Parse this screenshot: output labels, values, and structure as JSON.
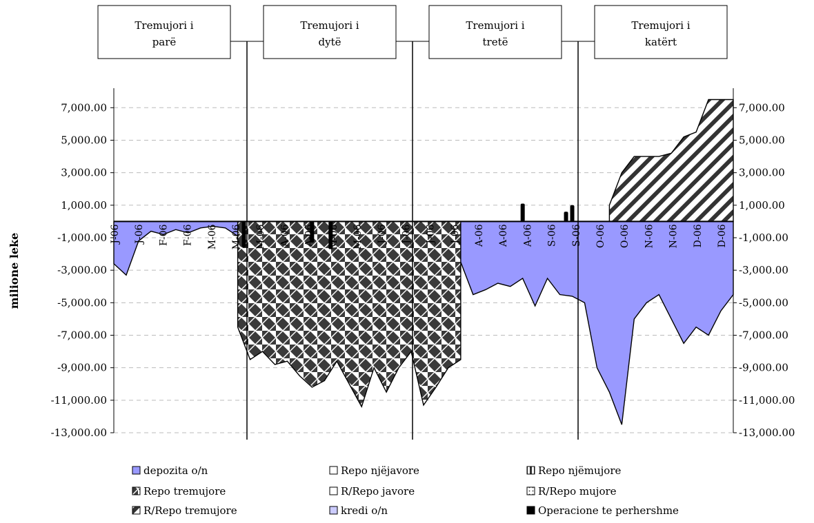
{
  "chart_data": {
    "type": "area",
    "ylabel": "milione leke",
    "ylim": [
      -13000,
      8200
    ],
    "yticks": [
      7000,
      5000,
      3000,
      1000,
      -1000,
      -3000,
      -5000,
      -7000,
      -9000,
      -11000,
      -13000
    ],
    "ytick_labels": [
      "7,000.00",
      "5,000.00",
      "3,000.00",
      "1,000.00",
      "-1,000.00",
      "-3,000.00",
      "-5,000.00",
      "-7,000.00",
      "-9,000.00",
      "-11,000.00",
      "-13,000.00"
    ],
    "grid": true,
    "legend_position": "bottom",
    "quarters": [
      {
        "line1": "Tremujori i",
        "line2": "parë"
      },
      {
        "line1": "Tremujori i",
        "line2": "dytë"
      },
      {
        "line1": "Tremujori i",
        "line2": "tretë"
      },
      {
        "line1": "Tremujori i",
        "line2": "katërt"
      }
    ],
    "x_tick_labels": [
      "J-06",
      "J-06",
      "F-06",
      "F-06",
      "M-06",
      "M-06",
      "M-06",
      "A-06",
      "A-06",
      "M-06",
      "M-06",
      "J-06",
      "J-06",
      "J-06",
      "J-06",
      "A-06",
      "A-06",
      "A-06",
      "S-06",
      "S-06",
      "O-06",
      "O-06",
      "N-06",
      "N-06",
      "D-06",
      "D-06"
    ],
    "legend": [
      {
        "label": "depozita o/n",
        "color": "#9999ff",
        "pattern": "solid"
      },
      {
        "label": "Repo njëjavore",
        "color": "#ffffff",
        "pattern": "solid"
      },
      {
        "label": "Repo njëmujore",
        "color": "#000000",
        "pattern": "vstripes"
      },
      {
        "label": "Repo tremujore",
        "color": "#000000",
        "pattern": "checker"
      },
      {
        "label": "R/Repo javore",
        "color": "#ffffff",
        "pattern": "solid"
      },
      {
        "label": "R/Repo mujore",
        "color": "#ffffff",
        "pattern": "dots"
      },
      {
        "label": "R/Repo tremujore",
        "color": "#000000",
        "pattern": "diag"
      },
      {
        "label": "kredi o/n",
        "color": "#ccccff",
        "pattern": "solid"
      },
      {
        "label": "Operacione te perhershme",
        "color": "#000000",
        "pattern": "solid"
      }
    ],
    "series": [
      {
        "name": "depozita o/n",
        "x": [
          0,
          2,
          4,
          6,
          8,
          10,
          12,
          14,
          16,
          18,
          20,
          22,
          24,
          26,
          28,
          30,
          32,
          34,
          36,
          38,
          40,
          42,
          44,
          46,
          48,
          50,
          52,
          54,
          56,
          58,
          60,
          62,
          64,
          66,
          68,
          70,
          72,
          74,
          76,
          78,
          80,
          82,
          84,
          86,
          88,
          90,
          92,
          94,
          96,
          98,
          100
        ],
        "values": [
          -2600,
          -3300,
          -1200,
          -600,
          -800,
          -500,
          -700,
          -400,
          -300,
          -400,
          -900,
          -200,
          -300,
          -200,
          -400,
          -300,
          -200,
          -600,
          -300,
          -800,
          -600,
          -400,
          -200,
          -300,
          -300,
          -400,
          -300,
          -200,
          -2500,
          -4500,
          -4200,
          -3800,
          -4000,
          -3500,
          -5200,
          -3500,
          -4500,
          -4600,
          -5000,
          -9000,
          -10500,
          -12500,
          -6000,
          -5000,
          -4500,
          -6000,
          -7500,
          -6500,
          -7000,
          -5500,
          -4500
        ]
      },
      {
        "name": "Repo tremujore",
        "x": [
          20,
          22,
          24,
          26,
          28,
          30,
          32,
          34,
          36,
          38,
          40,
          42,
          44,
          46,
          48,
          50,
          52,
          54,
          56
        ],
        "values": [
          -6500,
          -8500,
          -8000,
          -8800,
          -8600,
          -9500,
          -10200,
          -9800,
          -8600,
          -10000,
          -11400,
          -9000,
          -10500,
          -9000,
          -8000,
          -11300,
          -10200,
          -9000,
          -8500
        ]
      },
      {
        "name": "R/Repo tremujore",
        "x": [
          80,
          82,
          84,
          86,
          88,
          90,
          92,
          94,
          96,
          98,
          100
        ],
        "values": [
          1000,
          3000,
          4000,
          4000,
          4000,
          4200,
          5200,
          5500,
          7500,
          7500,
          7500
        ]
      },
      {
        "name": "Operacione te perhershme",
        "x": [
          21,
          32,
          35,
          66,
          73,
          74
        ],
        "values": [
          -1600,
          -1300,
          -1700,
          1100,
          600,
          1000
        ]
      }
    ]
  }
}
